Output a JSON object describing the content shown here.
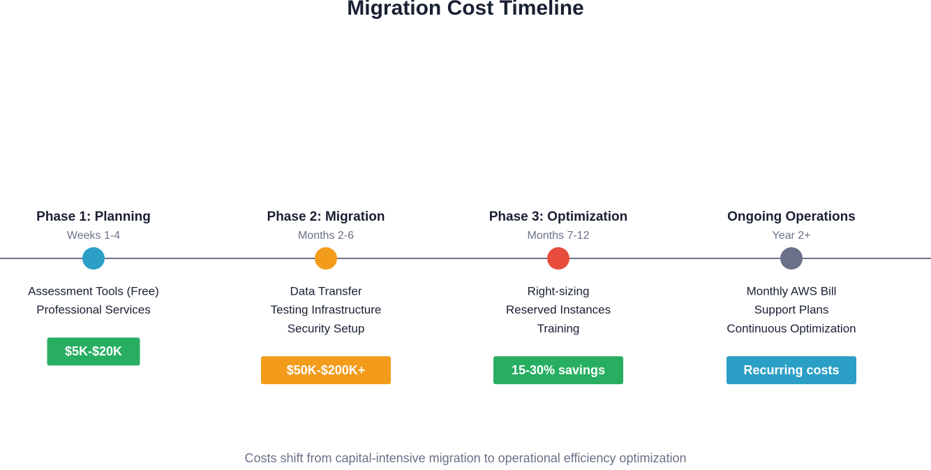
{
  "title": "Migration Cost Timeline",
  "phases": [
    {
      "name": "Phase 1: Planning",
      "period": "Weeks 1-4",
      "items": [
        "Assessment Tools (Free)",
        "Professional Services"
      ],
      "cost": "$5K-$20K"
    },
    {
      "name": "Phase 2: Migration",
      "period": "Months 2-6",
      "items": [
        "Data Transfer",
        "Testing Infrastructure",
        "Security Setup"
      ],
      "cost": "$50K-$200K+"
    },
    {
      "name": "Phase 3: Optimization",
      "period": "Months 7-12",
      "items": [
        "Right-sizing",
        "Reserved Instances",
        "Training"
      ],
      "cost": "15-30% savings"
    },
    {
      "name": "Ongoing Operations",
      "period": "Year 2+",
      "items": [
        "Monthly AWS Bill",
        "Support Plans",
        "Continuous Optimization"
      ],
      "cost": "Recurring costs"
    }
  ],
  "footer": "Costs shift from capital-intensive migration to operational efficiency optimization"
}
